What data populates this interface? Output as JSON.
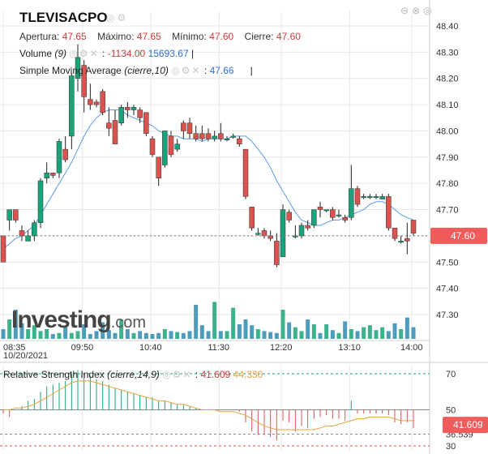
{
  "header": {
    "symbol": "TLEVISACPO",
    "open_label": "Apertura:",
    "open": "47.65",
    "high_label": "Máximo:",
    "high": "47.65",
    "low_label": "Mínimo:",
    "low": "47.60",
    "close_label": "Cierre:",
    "close": "47.60",
    "volume_label": "Volume",
    "volume_param": "(9)",
    "volume_sep": ":",
    "volume_value": "-1134.00",
    "volume_value2": "15693.67",
    "volume_end": "|",
    "sma_label": "Simple Moving Average",
    "sma_param": "(cierre,10)",
    "sma_sep": ":",
    "sma_value": "47.66",
    "sma_end": "|",
    "rsi_label": "Relative Strength Index",
    "rsi_param": "(cierre,14,9)",
    "rsi_sep": ":",
    "rsi_value": "41.609",
    "rsi_value2": "44.330"
  },
  "icons": {
    "title": [
      "eye-icon",
      "settings-icon"
    ],
    "corner": [
      "minus-icon",
      "close-icon",
      "maximize-icon"
    ],
    "indicator": [
      "eye-icon",
      "settings-icon",
      "close-icon"
    ]
  },
  "watermark": {
    "text": "Investing",
    "suffix": ".com"
  },
  "colors": {
    "up": "#1aa37a",
    "down": "#d9534f",
    "sma": "#5a9be6",
    "rsi": "#e6a23c",
    "badge": "#f05b5b",
    "grid": "#e8e8e8",
    "vol": "#2f8bb0"
  },
  "chart_data": [
    {
      "type": "candlestick",
      "name": "TLEVISACPO price",
      "x_ticks": [
        "08:35",
        "09:50",
        "10:40",
        "11:30",
        "12:20",
        "13:10",
        "14:00"
      ],
      "x_date_label": "10/20/2021",
      "y_ticks": [
        "48.40",
        "48.30",
        "48.20",
        "48.10",
        "48.00",
        "47.90",
        "47.80",
        "47.70",
        "47.60",
        "47.50",
        "47.40",
        "47.30"
      ],
      "ylim": [
        47.23,
        48.49
      ],
      "last_price": "47.60",
      "candles": [
        {
          "o": 47.6,
          "h": 47.6,
          "l": 47.5,
          "c": 47.5
        },
        {
          "o": 47.66,
          "h": 47.7,
          "l": 47.62,
          "c": 47.7
        },
        {
          "o": 47.7,
          "h": 47.7,
          "l": 47.65,
          "c": 47.66
        },
        {
          "o": 47.62,
          "h": 47.64,
          "l": 47.58,
          "c": 47.6
        },
        {
          "o": 47.58,
          "h": 47.62,
          "l": 47.58,
          "c": 47.6
        },
        {
          "o": 47.6,
          "h": 47.66,
          "l": 47.58,
          "c": 47.65
        },
        {
          "o": 47.65,
          "h": 47.82,
          "l": 47.63,
          "c": 47.81
        },
        {
          "o": 47.82,
          "h": 47.88,
          "l": 47.8,
          "c": 47.84
        },
        {
          "o": 47.84,
          "h": 47.84,
          "l": 47.82,
          "c": 47.83
        },
        {
          "o": 47.84,
          "h": 47.97,
          "l": 47.82,
          "c": 47.96
        },
        {
          "o": 47.93,
          "h": 47.98,
          "l": 47.88,
          "c": 47.89
        },
        {
          "o": 47.98,
          "h": 48.22,
          "l": 47.93,
          "c": 48.21
        },
        {
          "o": 48.2,
          "h": 48.33,
          "l": 48.15,
          "c": 48.28
        },
        {
          "o": 48.25,
          "h": 48.27,
          "l": 48.07,
          "c": 48.13
        },
        {
          "o": 48.12,
          "h": 48.18,
          "l": 48.08,
          "c": 48.1
        },
        {
          "o": 48.11,
          "h": 48.12,
          "l": 48.09,
          "c": 48.1
        },
        {
          "o": 48.15,
          "h": 48.16,
          "l": 48.06,
          "c": 48.07
        },
        {
          "o": 48.03,
          "h": 48.09,
          "l": 47.98,
          "c": 48.01
        },
        {
          "o": 48.04,
          "h": 48.08,
          "l": 47.96,
          "c": 47.95
        },
        {
          "o": 48.03,
          "h": 48.1,
          "l": 48.02,
          "c": 48.09
        },
        {
          "o": 48.09,
          "h": 48.11,
          "l": 48.05,
          "c": 48.08
        },
        {
          "o": 48.08,
          "h": 48.1,
          "l": 48.06,
          "c": 48.09
        },
        {
          "o": 48.08,
          "h": 48.09,
          "l": 48.03,
          "c": 48.05
        },
        {
          "o": 48.07,
          "h": 48.07,
          "l": 47.98,
          "c": 47.99
        },
        {
          "o": 47.97,
          "h": 47.98,
          "l": 47.9,
          "c": 47.91
        },
        {
          "o": 47.9,
          "h": 47.9,
          "l": 47.79,
          "c": 47.82
        },
        {
          "o": 47.87,
          "h": 48.0,
          "l": 47.86,
          "c": 48.0
        },
        {
          "o": 47.98,
          "h": 48.0,
          "l": 47.9,
          "c": 47.91
        },
        {
          "o": 47.93,
          "h": 47.97,
          "l": 47.92,
          "c": 47.95
        },
        {
          "o": 48.03,
          "h": 48.04,
          "l": 47.97,
          "c": 48.0
        },
        {
          "o": 48.03,
          "h": 48.05,
          "l": 47.97,
          "c": 47.99
        },
        {
          "o": 47.99,
          "h": 48.02,
          "l": 47.96,
          "c": 47.97
        },
        {
          "o": 47.99,
          "h": 48.02,
          "l": 47.96,
          "c": 47.97
        },
        {
          "o": 47.99,
          "h": 48.01,
          "l": 47.96,
          "c": 47.97
        },
        {
          "o": 47.97,
          "h": 48.0,
          "l": 47.96,
          "c": 47.98
        },
        {
          "o": 47.99,
          "h": 48.03,
          "l": 47.96,
          "c": 47.97
        },
        {
          "o": 47.97,
          "h": 47.98,
          "l": 47.96,
          "c": 47.97
        },
        {
          "o": 47.98,
          "h": 47.99,
          "l": 47.97,
          "c": 47.98
        },
        {
          "o": 47.97,
          "h": 47.98,
          "l": 47.94,
          "c": 47.95
        },
        {
          "o": 47.93,
          "h": 47.93,
          "l": 47.74,
          "c": 47.75
        },
        {
          "o": 47.71,
          "h": 47.71,
          "l": 47.62,
          "c": 47.63
        },
        {
          "o": 47.61,
          "h": 47.63,
          "l": 47.6,
          "c": 47.61
        },
        {
          "o": 47.62,
          "h": 47.63,
          "l": 47.59,
          "c": 47.6
        },
        {
          "o": 47.6,
          "h": 47.62,
          "l": 47.58,
          "c": 47.59
        },
        {
          "o": 47.58,
          "h": 47.61,
          "l": 47.48,
          "c": 47.49
        },
        {
          "o": 47.52,
          "h": 47.72,
          "l": 47.52,
          "c": 47.7
        },
        {
          "o": 47.69,
          "h": 47.7,
          "l": 47.65,
          "c": 47.66
        },
        {
          "o": 47.6,
          "h": 47.64,
          "l": 47.59,
          "c": 47.6
        },
        {
          "o": 47.6,
          "h": 47.65,
          "l": 47.59,
          "c": 47.64
        },
        {
          "o": 47.64,
          "h": 47.66,
          "l": 47.62,
          "c": 47.63
        },
        {
          "o": 47.64,
          "h": 47.7,
          "l": 47.63,
          "c": 47.7
        },
        {
          "o": 47.71,
          "h": 47.73,
          "l": 47.67,
          "c": 47.7
        },
        {
          "o": 47.7,
          "h": 47.7,
          "l": 47.69,
          "c": 47.7
        },
        {
          "o": 47.7,
          "h": 47.71,
          "l": 47.66,
          "c": 47.67
        },
        {
          "o": 47.68,
          "h": 47.7,
          "l": 47.67,
          "c": 47.68
        },
        {
          "o": 47.67,
          "h": 47.68,
          "l": 47.65,
          "c": 47.66
        },
        {
          "o": 47.67,
          "h": 47.87,
          "l": 47.66,
          "c": 47.78
        },
        {
          "o": 47.78,
          "h": 47.79,
          "l": 47.71,
          "c": 47.72
        },
        {
          "o": 47.75,
          "h": 47.76,
          "l": 47.74,
          "c": 47.75
        },
        {
          "o": 47.75,
          "h": 47.76,
          "l": 47.74,
          "c": 47.75
        },
        {
          "o": 47.75,
          "h": 47.76,
          "l": 47.74,
          "c": 47.75
        },
        {
          "o": 47.74,
          "h": 47.76,
          "l": 47.74,
          "c": 47.75
        },
        {
          "o": 47.75,
          "h": 47.76,
          "l": 47.62,
          "c": 47.63
        },
        {
          "o": 47.63,
          "h": 47.63,
          "l": 47.58,
          "c": 47.59
        },
        {
          "o": 47.58,
          "h": 47.6,
          "l": 47.57,
          "c": 47.58
        },
        {
          "o": 47.59,
          "h": 47.65,
          "l": 47.53,
          "c": 47.58
        },
        {
          "o": 47.66,
          "h": 47.66,
          "l": 47.6,
          "c": 47.61
        }
      ],
      "sma": [
        47.55,
        47.57,
        47.59,
        47.6,
        47.62,
        47.64,
        47.68,
        47.72,
        47.76,
        47.8,
        47.84,
        47.88,
        47.93,
        47.98,
        48.02,
        48.05,
        48.07,
        48.08,
        48.08,
        48.08,
        48.06,
        48.05,
        48.04,
        48.03,
        48.02,
        48.0,
        47.99,
        47.98,
        47.98,
        47.97,
        47.97,
        47.97,
        47.96,
        47.97,
        47.97,
        47.97,
        47.97,
        47.98,
        47.98,
        47.98,
        47.96,
        47.93,
        47.9,
        47.86,
        47.81,
        47.77,
        47.73,
        47.69,
        47.66,
        47.65,
        47.64,
        47.64,
        47.65,
        47.66,
        47.66,
        47.67,
        47.68,
        47.69,
        47.7,
        47.72,
        47.73,
        47.73,
        47.72,
        47.7,
        47.68,
        47.67,
        47.66
      ]
    },
    {
      "type": "bar",
      "name": "Volume",
      "values": [
        1.0,
        2.0,
        3.0,
        1.6,
        1.0,
        1.4,
        0.8,
        1.0,
        0.5,
        0.6,
        1.2,
        0.6,
        0.8,
        1.5,
        0.5,
        0.8,
        1.7,
        0.9,
        0.6,
        2.0,
        1.0,
        0.6,
        0.8,
        0.6,
        0.5,
        0.6,
        1.0,
        0.8,
        0.7,
        0.6,
        0.8,
        3.5,
        1.4,
        0.8,
        3.8,
        0.8,
        0.8,
        3.2,
        1.5,
        2.0,
        1.4,
        1.0,
        0.8,
        0.7,
        0.6,
        3.0,
        1.7,
        1.2,
        0.8,
        2.0,
        1.5,
        0.6,
        1.5,
        0.9,
        0.6,
        1.8,
        1.0,
        0.8,
        1.2,
        1.4,
        0.9,
        1.2,
        0.8,
        1.6,
        1.0,
        2.2,
        1.2
      ],
      "ylim": [
        0,
        5
      ]
    },
    {
      "type": "bar+line",
      "name": "Relative Strength Index",
      "y_ticks": [
        "70",
        "50",
        "36.539",
        "30"
      ],
      "ylim": [
        28,
        72
      ],
      "last_value": "41.609",
      "rsi": [
        48,
        46,
        50,
        52,
        55,
        56,
        60,
        63,
        64,
        65,
        66,
        70,
        72,
        70,
        69,
        67,
        66,
        64,
        62,
        61,
        60,
        59,
        58,
        57,
        57,
        55,
        55,
        54,
        53,
        53,
        52,
        51,
        50,
        50,
        50,
        50,
        50,
        50,
        49,
        43,
        38,
        36,
        36,
        35,
        33,
        44,
        43,
        38,
        41,
        40,
        45,
        46,
        47,
        45,
        45,
        44,
        55,
        48,
        48,
        48,
        48,
        48,
        47,
        43,
        42,
        43,
        40
      ],
      "signal": [
        50,
        50,
        51,
        51,
        52,
        53,
        55,
        57,
        59,
        61,
        63,
        65,
        66,
        66,
        66,
        65,
        64,
        63,
        62,
        61,
        60,
        59,
        58,
        57,
        56,
        55,
        55,
        54,
        53,
        53,
        52,
        51,
        50,
        50,
        50,
        49,
        49,
        49,
        48,
        47,
        45,
        43,
        41,
        40,
        39,
        39,
        39,
        39,
        39,
        39,
        39,
        40,
        41,
        41,
        42,
        43,
        44,
        45,
        45,
        46,
        46,
        46,
        46,
        45,
        44,
        44,
        44
      ]
    }
  ]
}
